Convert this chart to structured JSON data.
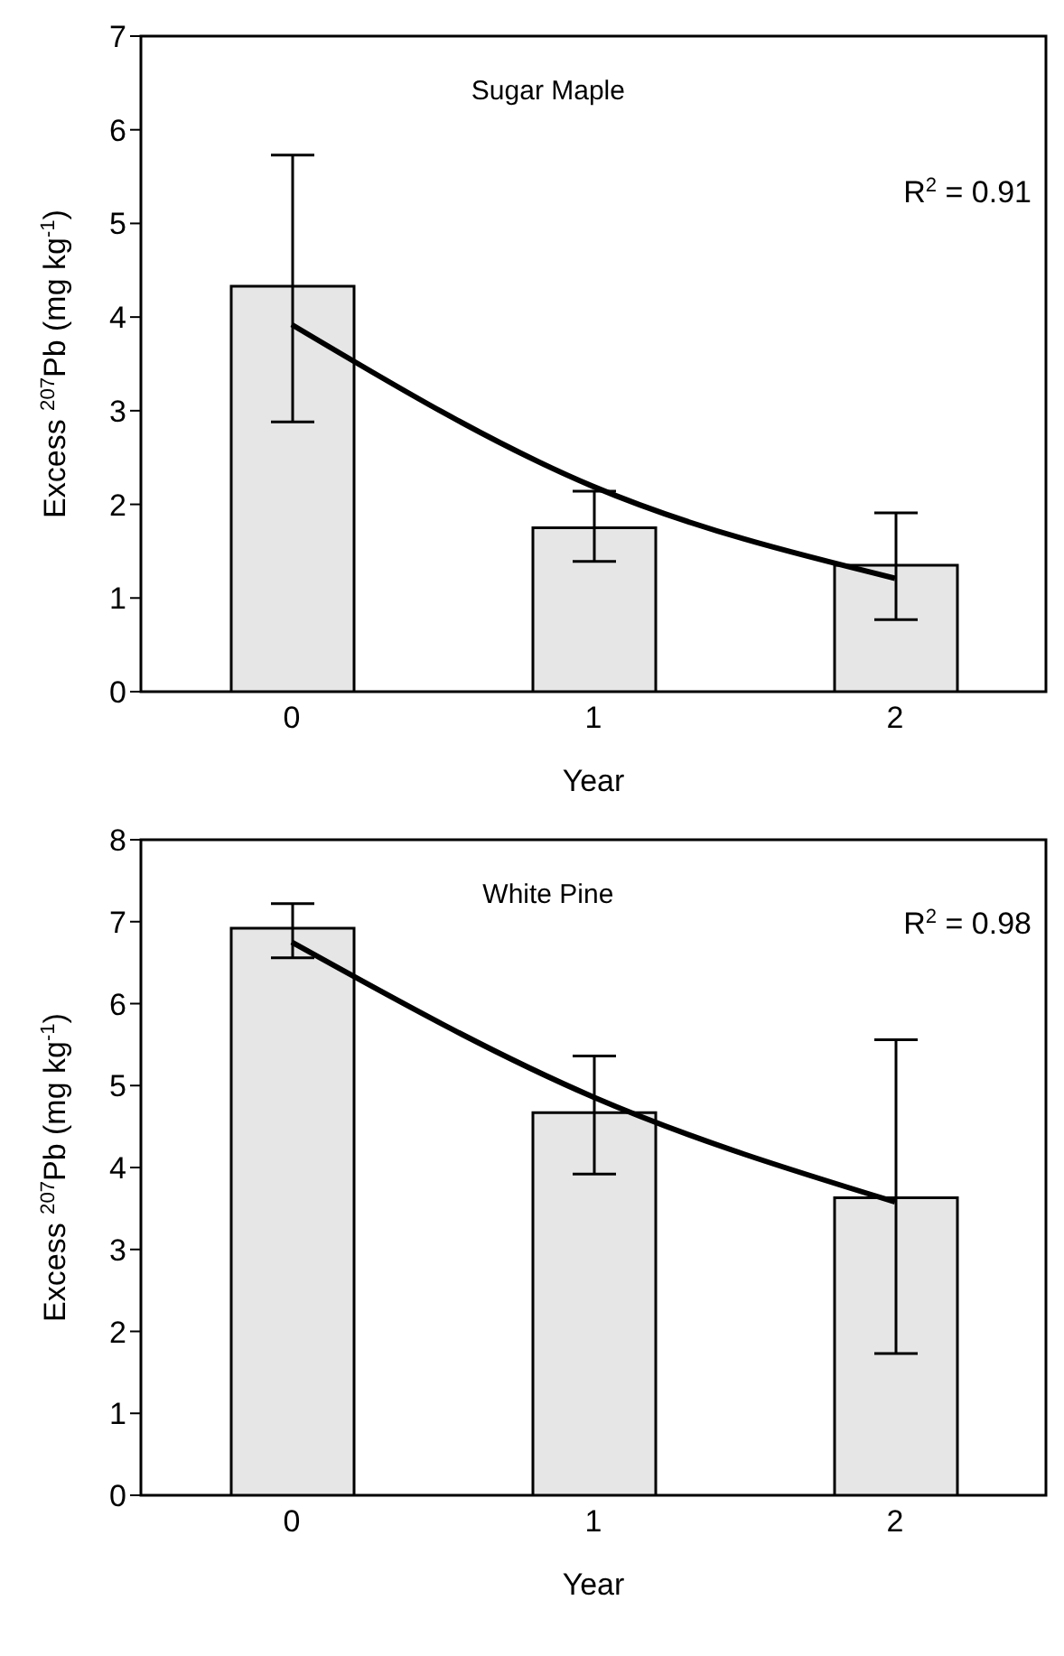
{
  "chart_data": [
    {
      "type": "bar",
      "title": "Sugar Maple",
      "xlabel": "Year",
      "ylabel": "Excess $^{207}$Pb (mg kg$^{-1}$)",
      "annotations": [
        "R$^{2}$ = 0.91"
      ],
      "categories": [
        "0",
        "1",
        "2"
      ],
      "ylim": [
        0,
        7
      ],
      "yticks": [
        0,
        1,
        2,
        3,
        4,
        5,
        6,
        7
      ],
      "grid": false,
      "legend": false,
      "series": [
        {
          "color": "#e6e6e6",
          "values": [
            4.33,
            1.75,
            1.35
          ],
          "errors": [
            [
              2.88,
              5.73
            ],
            [
              1.39,
              2.14
            ],
            [
              0.77,
              1.91
            ]
          ]
        },
        {
          "type": "line",
          "color": "#000000",
          "values": [
            3.92,
            2.19,
            1.21
          ]
        }
      ]
    },
    {
      "type": "bar",
      "title": "White Pine",
      "xlabel": "Year",
      "ylabel": "Excess $^{207}$Pb (mg kg$^{-1}$)",
      "annotations": [
        "R$^{2}$ = 0.98"
      ],
      "categories": [
        "0",
        "1",
        "2"
      ],
      "ylim": [
        0,
        8
      ],
      "yticks": [
        0,
        1,
        2,
        3,
        4,
        5,
        6,
        7,
        8
      ],
      "grid": false,
      "legend": false,
      "series": [
        {
          "color": "#e6e6e6",
          "values": [
            6.92,
            4.67,
            3.63
          ],
          "errors": [
            [
              6.56,
              7.22
            ],
            [
              3.92,
              5.36
            ],
            [
              1.73,
              5.56
            ]
          ]
        },
        {
          "type": "line",
          "color": "#000000",
          "values": [
            6.75,
            4.86,
            3.58
          ]
        }
      ]
    }
  ]
}
